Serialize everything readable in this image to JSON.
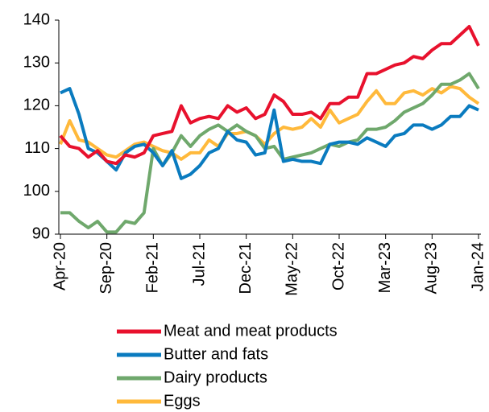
{
  "chart_data": {
    "type": "line",
    "categories": [
      "Apr-20",
      null,
      null,
      null,
      null,
      "Sep-20",
      null,
      null,
      null,
      null,
      "Feb-21",
      null,
      null,
      null,
      null,
      "Jul-21",
      null,
      null,
      null,
      null,
      "Dec-21",
      null,
      null,
      null,
      null,
      "May-22",
      null,
      null,
      null,
      null,
      "Oct-22",
      null,
      null,
      null,
      null,
      "Mar-23",
      null,
      null,
      null,
      null,
      "Aug-23",
      null,
      null,
      null,
      null,
      "Jan-24"
    ],
    "series": [
      {
        "name": "Meat and meat products",
        "color": "#e8112d",
        "values": [
          113,
          110.5,
          110,
          108,
          109.5,
          107,
          106.5,
          108.5,
          108,
          109,
          113,
          113.5,
          114,
          120,
          116,
          117,
          117.5,
          117,
          120,
          118.5,
          119.5,
          117,
          118,
          122.5,
          121,
          118,
          118,
          118.5,
          117,
          120.5,
          120.5,
          122,
          122,
          127.5,
          127.5,
          128.5,
          129.5,
          130,
          131.5,
          131,
          133,
          134.5,
          134.5,
          136.5,
          138.5,
          134
        ]
      },
      {
        "name": "Butter and fats",
        "color": "#0a7bbf",
        "values": [
          123,
          124,
          118,
          110,
          109,
          107,
          105,
          109,
          110.5,
          111,
          109,
          106,
          109.5,
          103,
          104,
          106,
          109,
          110,
          114,
          112,
          111.5,
          108.5,
          109,
          119,
          107,
          107.5,
          107,
          107,
          106.5,
          111,
          111.5,
          111.5,
          111,
          112.5,
          111.5,
          110.5,
          113,
          113.5,
          115.5,
          115.5,
          114.5,
          115.5,
          117.5,
          117.5,
          120,
          119
        ]
      },
      {
        "name": "Dairy products",
        "color": "#6fa86c",
        "values": [
          95,
          95,
          93,
          91.5,
          93,
          90.5,
          90.5,
          93,
          92.5,
          95,
          110,
          106,
          109,
          113,
          110.5,
          113,
          114.5,
          115.5,
          114,
          115.5,
          114,
          113,
          110,
          110.5,
          107.5,
          108,
          108.5,
          109,
          110,
          111,
          110.5,
          111.5,
          112,
          114.5,
          114.5,
          115,
          116.5,
          118.5,
          119.5,
          120.5,
          122.5,
          125,
          125,
          126,
          127.5,
          124
        ]
      },
      {
        "name": "Eggs",
        "color": "#ffb93b",
        "values": [
          111,
          116.5,
          112,
          111.5,
          110,
          108.5,
          108,
          109.5,
          111,
          111.5,
          110.5,
          109.5,
          109,
          107.5,
          109,
          109,
          112,
          110.5,
          113.5,
          113.5,
          114,
          113,
          111,
          113.5,
          115,
          114.5,
          115,
          117,
          115,
          119,
          116,
          117,
          118,
          121,
          123.5,
          120.5,
          120.5,
          123,
          123.5,
          122.5,
          124,
          123,
          124.5,
          124,
          122,
          120.5
        ]
      }
    ],
    "ylim": [
      90,
      140
    ],
    "yticks": [
      90,
      100,
      110,
      120,
      130,
      140
    ]
  }
}
